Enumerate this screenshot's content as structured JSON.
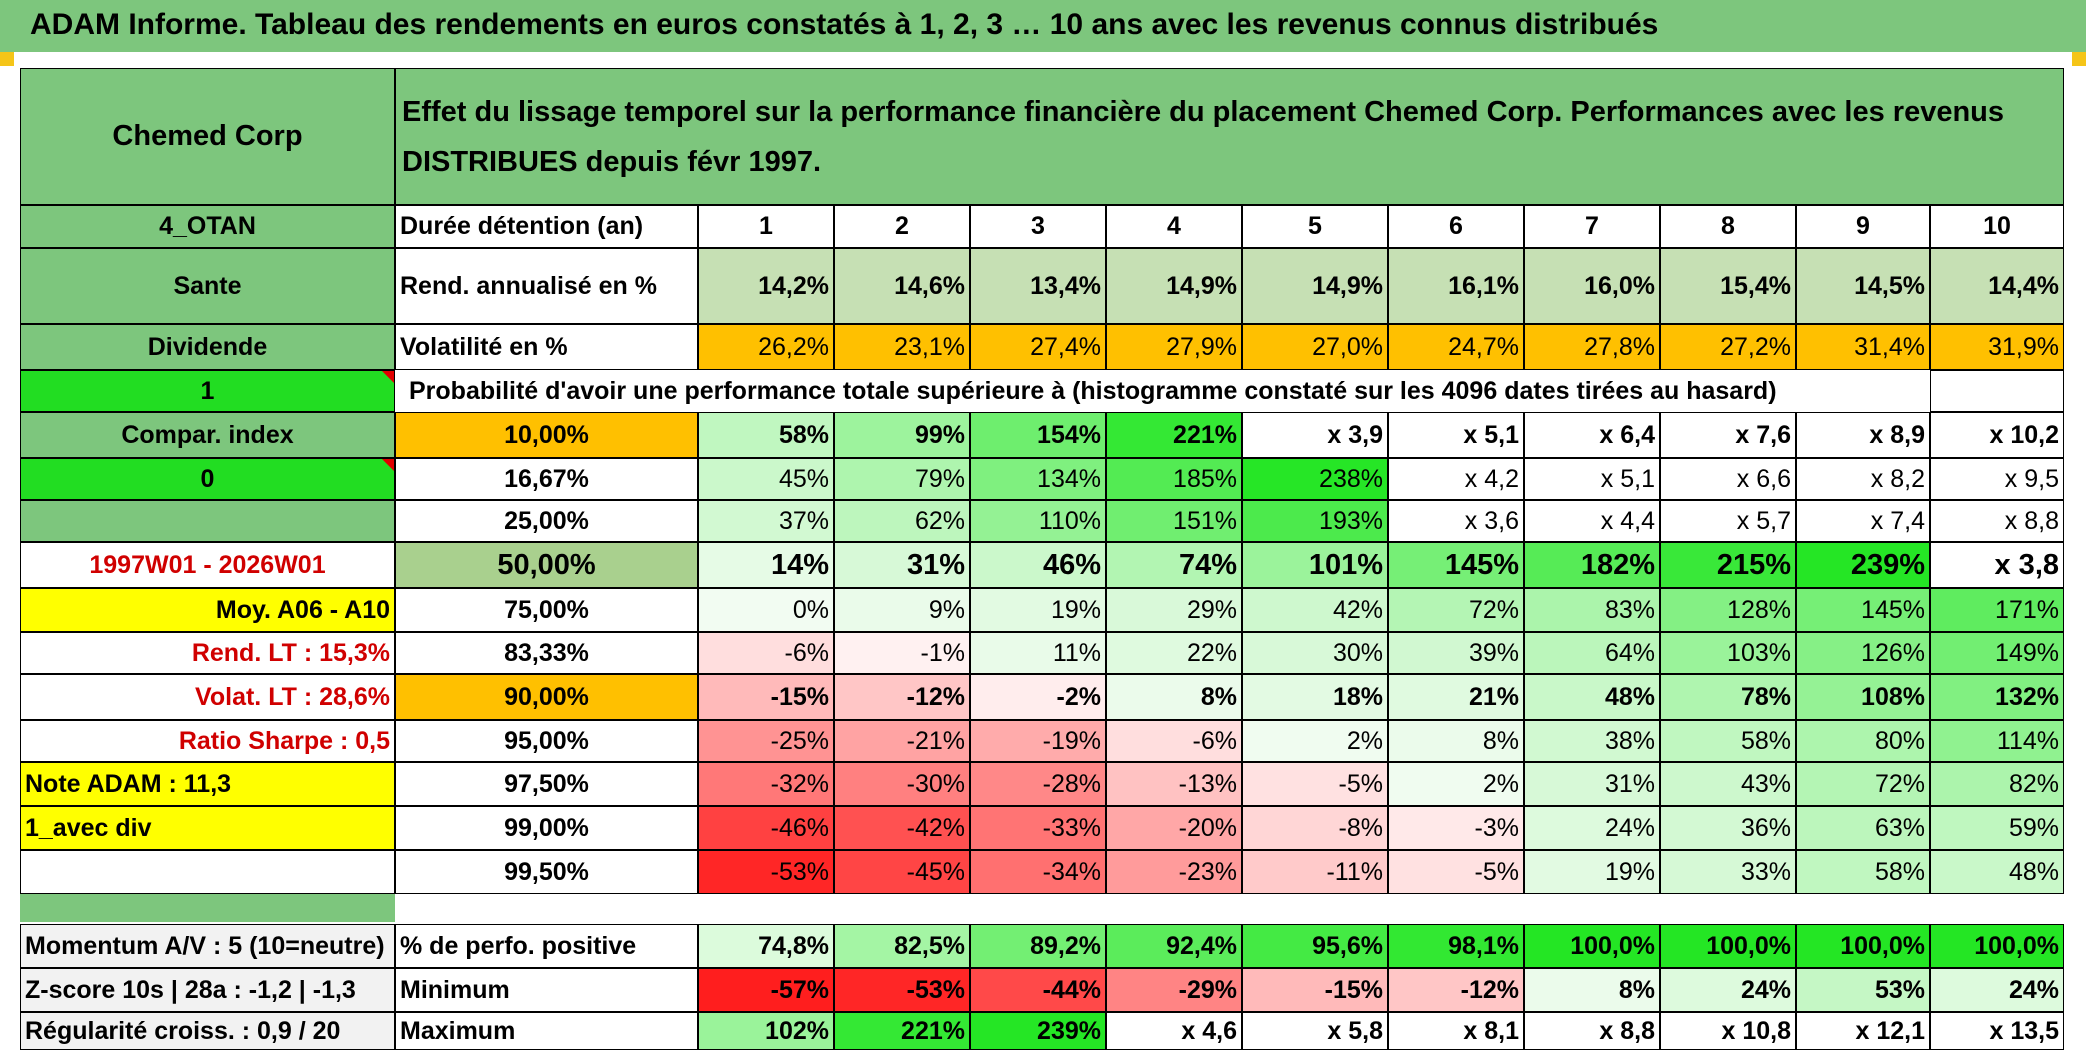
{
  "header": "ADAM Informe. Tableau des rendements en euros constatés à 1, 2, 3 … 10 ans avec les revenus connus distribués",
  "fund_name": "Chemed Corp",
  "title": "Effet du lissage temporel sur la performance financière du placement Chemed Corp. Performances avec les revenus DISTRIBUES depuis févr 1997.",
  "left_labels": {
    "otan": "4_OTAN",
    "sector": "Sante",
    "dividend": "Dividende",
    "one": "1",
    "compar": "Compar. index",
    "zero": "0",
    "period": "1997W01 - 2026W01",
    "moy": "Moy. A06 - A10",
    "rend_lt": "Rend. LT :   15,3%",
    "volat_lt": "Volat. LT :   28,6%",
    "sharpe": "Ratio Sharpe :    0,5",
    "note": "Note ADAM : 11,3",
    "avec_div": "1_avec div",
    "momentum": "Momentum A/V : 5 (10=neutre)",
    "zscore": "Z-score 10s | 28a : -1,2 | -1,3",
    "regularite": "Régularité croiss. : 0,9 / 20"
  },
  "row_labels": {
    "duree": "Durée détention (an)",
    "rend": "Rend. annualisé en %",
    "vol": "Volatilité en %",
    "proba": "Probabilité d'avoir une performance totale supérieure à (histogramme constaté sur les 4096 dates tirées au hasard)",
    "pos": "% de perfo. positive",
    "min": "Minimum",
    "max": "Maximum"
  },
  "years": [
    "1",
    "2",
    "3",
    "4",
    "5",
    "6",
    "7",
    "8",
    "9",
    "10"
  ],
  "rend_values": [
    "14,2%",
    "14,6%",
    "13,4%",
    "14,9%",
    "14,9%",
    "16,1%",
    "16,0%",
    "15,4%",
    "14,5%",
    "14,4%"
  ],
  "vol_values": [
    "26,2%",
    "23,1%",
    "27,4%",
    "27,9%",
    "27,0%",
    "24,7%",
    "27,8%",
    "27,2%",
    "31,4%",
    "31,9%"
  ],
  "prob_rows": [
    {
      "p": "10,00%",
      "v": [
        "58%",
        "99%",
        "154%",
        "221%",
        "x 3,9",
        "x 5,1",
        "x 6,4",
        "x 7,6",
        "x 8,9",
        "x 10,2"
      ]
    },
    {
      "p": "16,67%",
      "v": [
        "45%",
        "79%",
        "134%",
        "185%",
        "238%",
        "x 4,2",
        "x 5,1",
        "x 6,6",
        "x 8,2",
        "x 9,5"
      ]
    },
    {
      "p": "25,00%",
      "v": [
        "37%",
        "62%",
        "110%",
        "151%",
        "193%",
        "x 3,6",
        "x 4,4",
        "x 5,7",
        "x 7,4",
        "x 8,8"
      ]
    },
    {
      "p": "50,00%",
      "v": [
        "14%",
        "31%",
        "46%",
        "74%",
        "101%",
        "145%",
        "182%",
        "215%",
        "239%",
        "x 3,8"
      ]
    },
    {
      "p": "75,00%",
      "v": [
        "0%",
        "9%",
        "19%",
        "29%",
        "42%",
        "72%",
        "83%",
        "128%",
        "145%",
        "171%"
      ]
    },
    {
      "p": "83,33%",
      "v": [
        "-6%",
        "-1%",
        "11%",
        "22%",
        "30%",
        "39%",
        "64%",
        "103%",
        "126%",
        "149%"
      ]
    },
    {
      "p": "90,00%",
      "v": [
        "-15%",
        "-12%",
        "-2%",
        "8%",
        "18%",
        "21%",
        "48%",
        "78%",
        "108%",
        "132%"
      ]
    },
    {
      "p": "95,00%",
      "v": [
        "-25%",
        "-21%",
        "-19%",
        "-6%",
        "2%",
        "8%",
        "38%",
        "58%",
        "80%",
        "114%"
      ]
    },
    {
      "p": "97,50%",
      "v": [
        "-32%",
        "-30%",
        "-28%",
        "-13%",
        "-5%",
        "2%",
        "31%",
        "43%",
        "72%",
        "82%"
      ]
    },
    {
      "p": "99,00%",
      "v": [
        "-46%",
        "-42%",
        "-33%",
        "-20%",
        "-8%",
        "-3%",
        "24%",
        "36%",
        "63%",
        "59%"
      ]
    },
    {
      "p": "99,50%",
      "v": [
        "-53%",
        "-45%",
        "-34%",
        "-23%",
        "-11%",
        "-5%",
        "19%",
        "33%",
        "58%",
        "48%"
      ]
    }
  ],
  "pos_values": [
    "74,8%",
    "82,5%",
    "89,2%",
    "92,4%",
    "95,6%",
    "98,1%",
    "100,0%",
    "100,0%",
    "100,0%",
    "100,0%"
  ],
  "min_values": [
    "-57%",
    "-53%",
    "-44%",
    "-29%",
    "-15%",
    "-12%",
    "8%",
    "24%",
    "53%",
    "24%"
  ],
  "max_values": [
    "102%",
    "221%",
    "239%",
    "x 4,6",
    "x 5,8",
    "x 8,1",
    "x 8,8",
    "x 10,8",
    "x 12,1",
    "x 13,5"
  ],
  "colors": {
    "banner": "#7dc67d",
    "label_green": "#7dc67d",
    "bright_green": "#22dd22",
    "yellow": "#ffff00",
    "orange": "#ffc000",
    "rend_fill": "#c6e0b4",
    "median_fill": "#a9d08e",
    "text_red": "#d00000"
  }
}
